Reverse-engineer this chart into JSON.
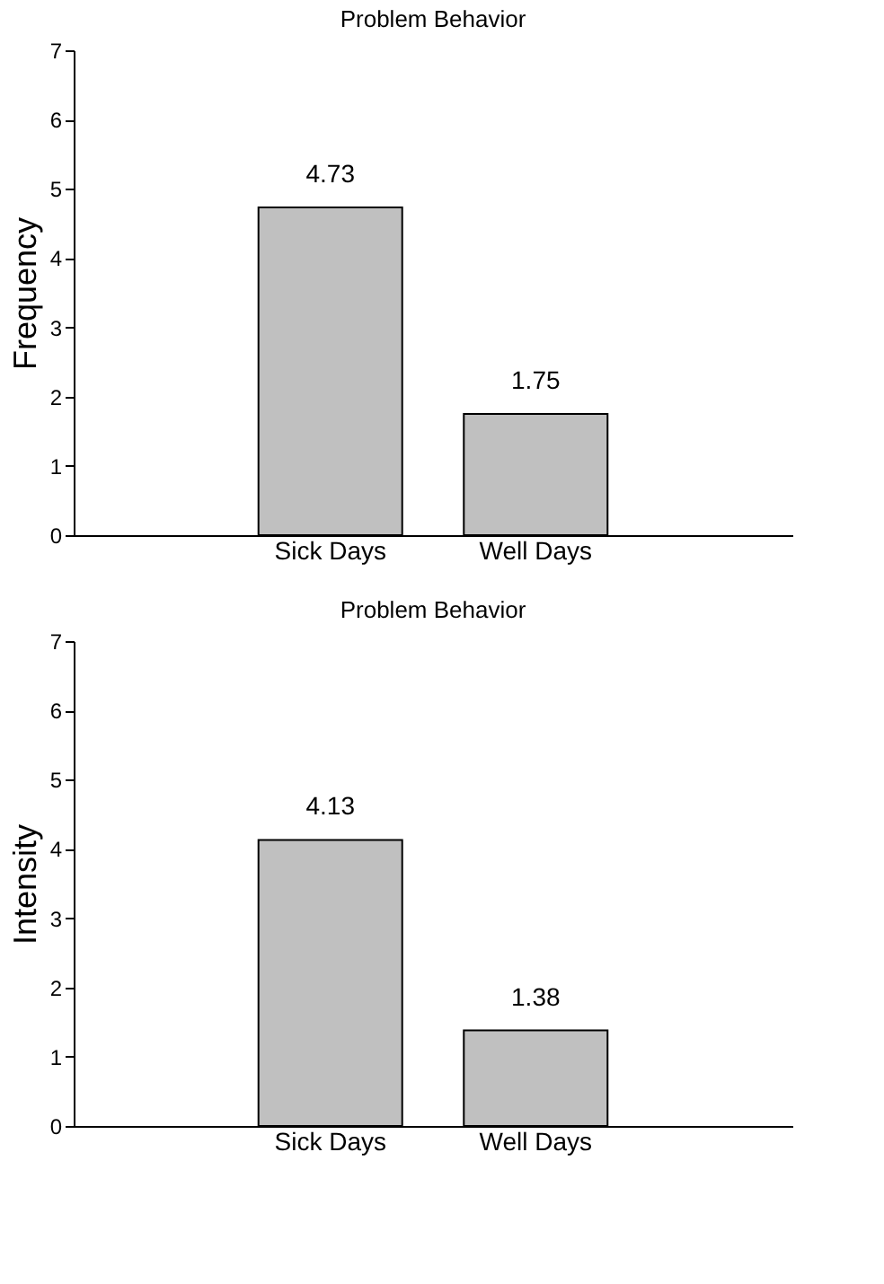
{
  "chart_data": [
    {
      "type": "bar",
      "title": "Problem Behavior",
      "ylabel": "Frequency",
      "categories": [
        "Sick Days",
        "Well Days"
      ],
      "values": [
        4.73,
        1.75
      ],
      "color": "#c0c0c0",
      "ylim": [
        0,
        7
      ],
      "yticks": [
        0,
        1,
        2,
        3,
        4,
        5,
        6,
        7
      ],
      "data_labels": true,
      "grid": false
    },
    {
      "type": "bar",
      "title": "Problem Behavior",
      "ylabel": "Intensity",
      "categories": [
        "Sick Days",
        "Well Days"
      ],
      "values": [
        4.13,
        1.38
      ],
      "color": "#c0c0c0",
      "ylim": [
        0,
        7
      ],
      "yticks": [
        0,
        1,
        2,
        3,
        4,
        5,
        6,
        7
      ],
      "data_labels": true,
      "grid": false
    }
  ]
}
